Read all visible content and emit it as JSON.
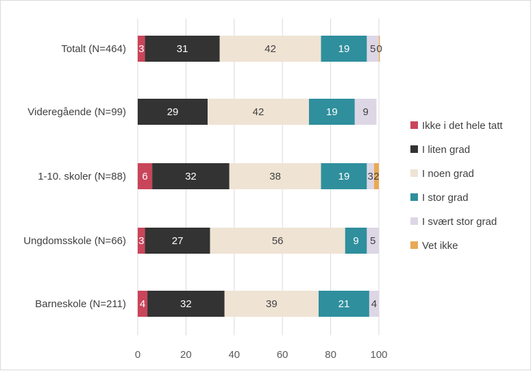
{
  "chart_data": {
    "type": "bar",
    "orientation": "horizontal",
    "stacked": true,
    "categories": [
      "Totalt (N=464)",
      "Videregående (N=99)",
      "1-10. skoler (N=88)",
      "Ungdomsskole (N=66)",
      "Barneskole (N=211)"
    ],
    "series": [
      {
        "name": "Ikke i det hele tatt",
        "color": "#c9455a",
        "values": [
          3,
          0,
          6,
          3,
          4
        ],
        "labels": [
          "3",
          "",
          "6",
          "3",
          "4"
        ]
      },
      {
        "name": "I liten grad",
        "color": "#333333",
        "values": [
          31,
          29,
          32,
          27,
          32
        ],
        "labels": [
          "31",
          "29",
          "32",
          "27",
          "32"
        ]
      },
      {
        "name": "I noen grad",
        "color": "#efe3d4",
        "values": [
          42,
          42,
          38,
          56,
          39
        ],
        "labels": [
          "42",
          "42",
          "38",
          "56",
          "39"
        ]
      },
      {
        "name": "I stor grad",
        "color": "#2f8f9d",
        "values": [
          19,
          19,
          19,
          9,
          21
        ],
        "labels": [
          "19",
          "19",
          "19",
          "9",
          "21"
        ]
      },
      {
        "name": "I svært stor grad",
        "color": "#ddd6e5",
        "values": [
          5,
          9,
          3,
          5,
          4
        ],
        "labels": [
          "5",
          "9",
          "3",
          "5",
          "4"
        ]
      },
      {
        "name": "Vet ikke",
        "color": "#e9a956",
        "values": [
          0.4,
          0,
          2,
          0,
          0
        ],
        "labels": [
          "0",
          "",
          "2",
          "",
          ""
        ]
      }
    ],
    "xlim": [
      0,
      100
    ],
    "xticks": [
      "0",
      "20",
      "40",
      "60",
      "80",
      "100"
    ],
    "grid": true,
    "legend_position": "right"
  }
}
